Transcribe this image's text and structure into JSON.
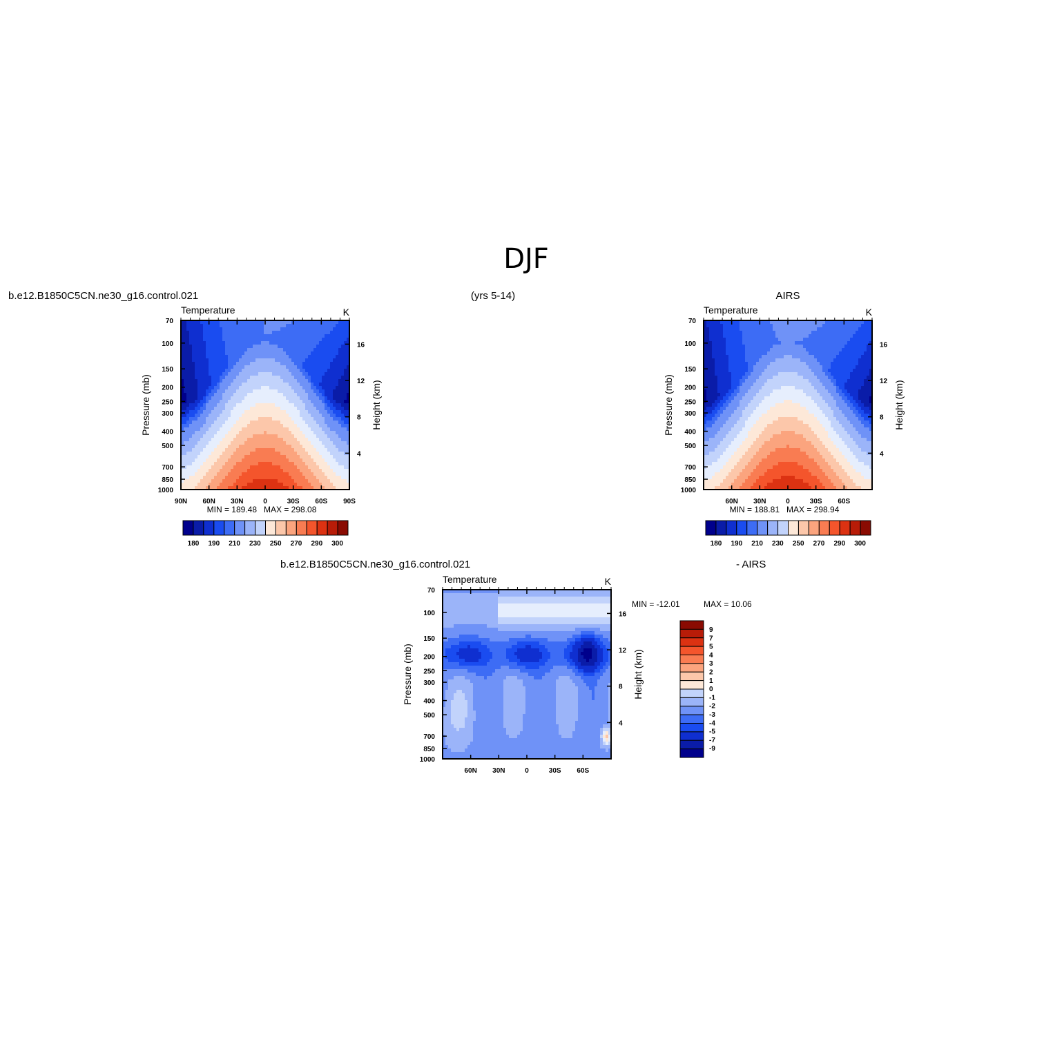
{
  "figure": {
    "title": "DJF"
  },
  "chart_data": [
    {
      "type": "heatmap",
      "id": "model",
      "left_title": "b.e12.B1850C5CN.ne30_g16.control.021",
      "center_title": "(yrs 5-14)",
      "right_title": "",
      "variable": "Temperature",
      "units": "K",
      "xlabel": "",
      "ylabel": "Pressure (mb)",
      "ylabel_right": "Height (km)",
      "x_ticks": [
        "90N",
        "60N",
        "30N",
        "0",
        "30S",
        "60S",
        "90S"
      ],
      "x_tick_lat": [
        90,
        60,
        30,
        0,
        -30,
        -60,
        -90
      ],
      "y_ticks": [
        70,
        100,
        150,
        200,
        250,
        300,
        400,
        500,
        700,
        850,
        1000
      ],
      "y_right_ticks": [
        16,
        12,
        8,
        4
      ],
      "ylim": [
        1000,
        70
      ],
      "xlim": [
        90,
        -90
      ],
      "y_scale": "log",
      "min_label": "MIN = 189.48",
      "max_label": "MAX = 298.08",
      "min": 189.48,
      "max": 298.08,
      "contour_levels": [
        180,
        185,
        190,
        195,
        200,
        210,
        220,
        230,
        240,
        250,
        260,
        270,
        280,
        290,
        300
      ],
      "colorbar_labels": [
        "180",
        "190",
        "210",
        "230",
        "250",
        "270",
        "290",
        "300"
      ],
      "colorbar_orientation": "horizontal"
    },
    {
      "type": "heatmap",
      "id": "obs",
      "left_title": "",
      "center_title": "",
      "right_title": "AIRS",
      "variable": "Temperature",
      "units": "K",
      "xlabel": "",
      "ylabel": "Pressure (mb)",
      "ylabel_right": "Height (km)",
      "x_ticks": [
        "60N",
        "30N",
        "0",
        "30S",
        "60S"
      ],
      "x_tick_lat": [
        60,
        30,
        0,
        -30,
        -60
      ],
      "y_ticks": [
        70,
        100,
        150,
        200,
        250,
        300,
        400,
        500,
        700,
        850,
        1000
      ],
      "y_right_ticks": [
        16,
        12,
        8,
        4
      ],
      "ylim": [
        1000,
        70
      ],
      "xlim": [
        90,
        -90
      ],
      "y_scale": "log",
      "min_label": "MIN = 188.81",
      "max_label": "MAX = 298.94",
      "min": 188.81,
      "max": 298.94,
      "contour_levels": [
        180,
        185,
        190,
        195,
        200,
        210,
        220,
        230,
        240,
        250,
        260,
        270,
        280,
        290,
        300
      ],
      "colorbar_labels": [
        "180",
        "190",
        "210",
        "230",
        "250",
        "270",
        "290",
        "300"
      ],
      "colorbar_orientation": "horizontal"
    },
    {
      "type": "heatmap",
      "id": "diff",
      "left_title": "b.e12.B1850C5CN.ne30_g16.control.021",
      "center_title": "",
      "right_title": "- AIRS",
      "variable": "Temperature",
      "units": "K",
      "xlabel": "",
      "ylabel": "Pressure (mb)",
      "ylabel_right": "Height (km)",
      "x_ticks": [
        "60N",
        "30N",
        "0",
        "30S",
        "60S"
      ],
      "x_tick_lat": [
        60,
        30,
        0,
        -30,
        -60
      ],
      "y_ticks": [
        70,
        100,
        150,
        200,
        250,
        300,
        400,
        500,
        700,
        850,
        1000
      ],
      "y_right_ticks": [
        16,
        12,
        8,
        4
      ],
      "ylim": [
        1000,
        70
      ],
      "xlim": [
        90,
        -90
      ],
      "y_scale": "log",
      "min_label": "MIN = -12.01",
      "max_label": "MAX = 10.06",
      "min": -12.01,
      "max": 10.06,
      "contour_levels": [
        -9,
        -7,
        -5,
        -4,
        -3,
        -2,
        -1,
        0,
        1,
        2,
        3,
        4,
        5,
        7,
        9
      ],
      "colorbar_labels": [
        "9",
        "7",
        "5",
        "4",
        "3",
        "2",
        "1",
        "0",
        "-1",
        "-2",
        "-3",
        "-4",
        "-5",
        "-7",
        "-9"
      ],
      "colorbar_orientation": "vertical"
    }
  ],
  "palette": [
    "#00008c",
    "#0a1ca8",
    "#0f2fd0",
    "#1a4cf0",
    "#3d6cf5",
    "#6f92f7",
    "#9bb4f9",
    "#c2d3fb",
    "#e6eefd",
    "#fde8d8",
    "#fcc7aa",
    "#fba47e",
    "#f97c52",
    "#f4552c",
    "#dc3212",
    "#b81c08",
    "#8a0b02"
  ]
}
